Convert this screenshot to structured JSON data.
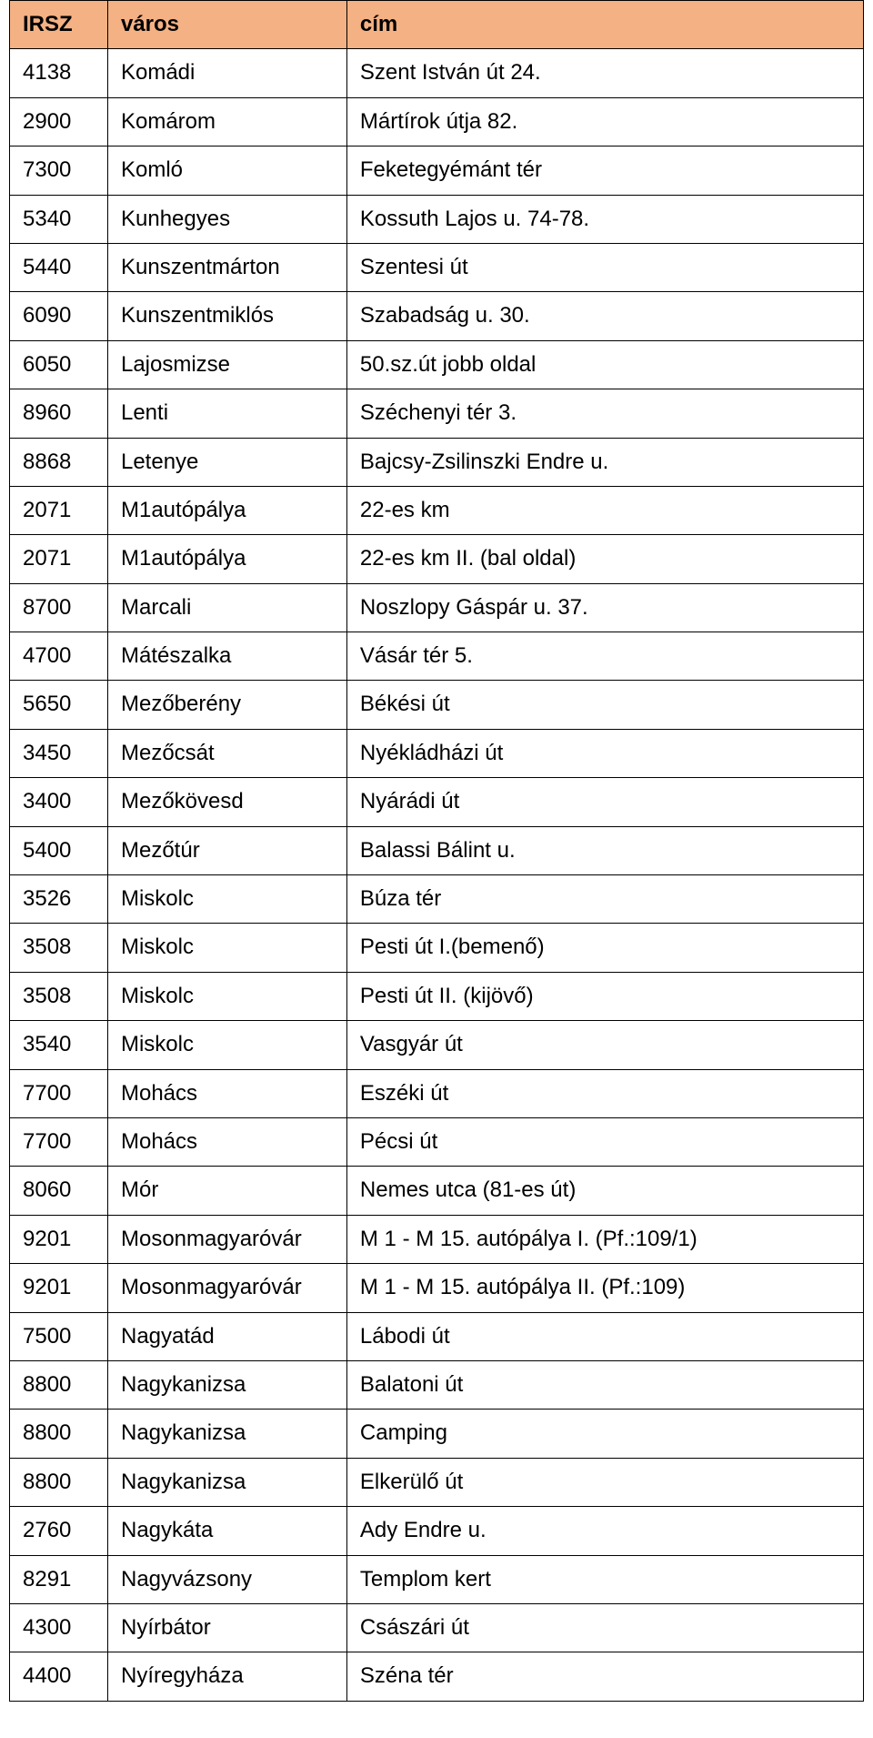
{
  "table": {
    "header_bg": "#f4b183",
    "border_color": "#000000",
    "text_color": "#000000",
    "font_family": "Arial",
    "header_fontsize": 24,
    "cell_fontsize": 24,
    "columns": [
      {
        "key": "irsz",
        "label": "IRSZ",
        "width_pct": 11.5
      },
      {
        "key": "varos",
        "label": "város",
        "width_pct": 28
      },
      {
        "key": "cim",
        "label": "cím",
        "width_pct": 60.5
      }
    ],
    "rows": [
      {
        "irsz": "4138",
        "varos": "Komádi",
        "cim": "Szent István út 24."
      },
      {
        "irsz": "2900",
        "varos": "Komárom",
        "cim": "Mártírok útja 82."
      },
      {
        "irsz": "7300",
        "varos": "Komló",
        "cim": "Feketegyémánt tér"
      },
      {
        "irsz": "5340",
        "varos": "Kunhegyes",
        "cim": "Kossuth Lajos u. 74-78."
      },
      {
        "irsz": "5440",
        "varos": "Kunszentmárton",
        "cim": "Szentesi út"
      },
      {
        "irsz": "6090",
        "varos": "Kunszentmiklós",
        "cim": "Szabadság u. 30."
      },
      {
        "irsz": "6050",
        "varos": "Lajosmizse",
        "cim": "50.sz.út jobb oldal"
      },
      {
        "irsz": "8960",
        "varos": "Lenti",
        "cim": "Széchenyi tér 3."
      },
      {
        "irsz": "8868",
        "varos": "Letenye",
        "cim": "Bajcsy-Zsilinszki Endre u."
      },
      {
        "irsz": "2071",
        "varos": "M1autópálya",
        "cim": "22-es km"
      },
      {
        "irsz": "2071",
        "varos": "M1autópálya",
        "cim": "22-es km II. (bal oldal)"
      },
      {
        "irsz": "8700",
        "varos": "Marcali",
        "cim": "Noszlopy Gáspár u. 37."
      },
      {
        "irsz": "4700",
        "varos": "Mátészalka",
        "cim": "Vásár tér 5."
      },
      {
        "irsz": "5650",
        "varos": "Mezőberény",
        "cim": "Békési út"
      },
      {
        "irsz": "3450",
        "varos": "Mezőcsát",
        "cim": "Nyékládházi út"
      },
      {
        "irsz": "3400",
        "varos": "Mezőkövesd",
        "cim": "Nyárádi út"
      },
      {
        "irsz": "5400",
        "varos": "Mezőtúr",
        "cim": "Balassi Bálint u."
      },
      {
        "irsz": "3526",
        "varos": "Miskolc",
        "cim": "Búza tér"
      },
      {
        "irsz": "3508",
        "varos": "Miskolc",
        "cim": "Pesti út I.(bemenő)"
      },
      {
        "irsz": "3508",
        "varos": "Miskolc",
        "cim": "Pesti út II. (kijövő)"
      },
      {
        "irsz": "3540",
        "varos": "Miskolc",
        "cim": "Vasgyár út"
      },
      {
        "irsz": "7700",
        "varos": "Mohács",
        "cim": "Eszéki út"
      },
      {
        "irsz": "7700",
        "varos": "Mohács",
        "cim": "Pécsi út"
      },
      {
        "irsz": "8060",
        "varos": "Mór",
        "cim": "Nemes utca (81-es út)"
      },
      {
        "irsz": "9201",
        "varos": "Mosonmagyaróvár",
        "cim": "M 1 - M 15. autópálya I. (Pf.:109/1)"
      },
      {
        "irsz": "9201",
        "varos": "Mosonmagyaróvár",
        "cim": "M 1 - M 15. autópálya II. (Pf.:109)"
      },
      {
        "irsz": "7500",
        "varos": "Nagyatád",
        "cim": "Lábodi út"
      },
      {
        "irsz": "8800",
        "varos": "Nagykanizsa",
        "cim": "Balatoni út"
      },
      {
        "irsz": "8800",
        "varos": "Nagykanizsa",
        "cim": "Camping"
      },
      {
        "irsz": "8800",
        "varos": "Nagykanizsa",
        "cim": "Elkerülő út"
      },
      {
        "irsz": "2760",
        "varos": "Nagykáta",
        "cim": "Ady Endre u."
      },
      {
        "irsz": "8291",
        "varos": "Nagyvázsony",
        "cim": "Templom kert"
      },
      {
        "irsz": "4300",
        "varos": "Nyírbátor",
        "cim": "Császári út"
      },
      {
        "irsz": "4400",
        "varos": "Nyíregyháza",
        "cim": "Széna tér"
      }
    ]
  }
}
